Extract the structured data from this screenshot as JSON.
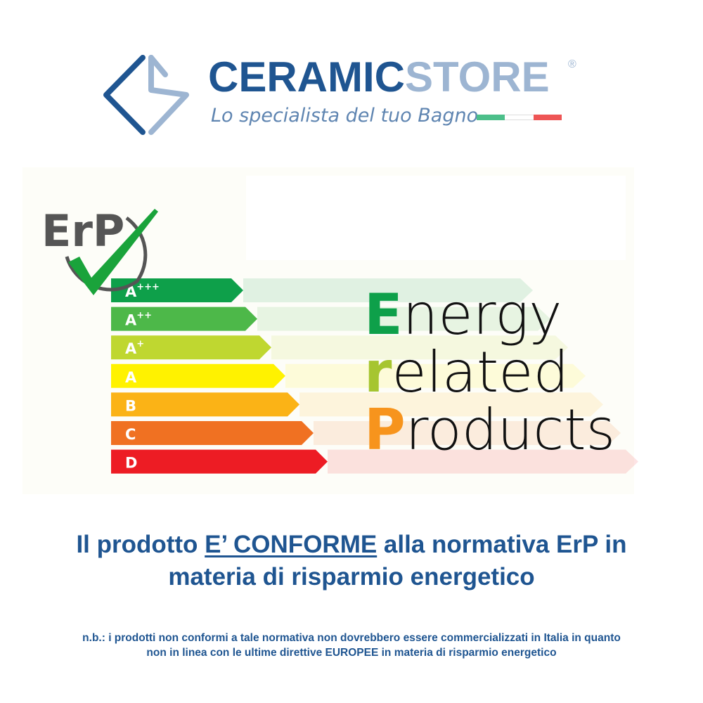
{
  "brand": {
    "name_part1": "CERAMIC",
    "name_part2": "STORE",
    "registered_mark": "®",
    "tagline": "Lo specialista del tuo Bagno",
    "flag_colors": [
      "#4cbf8a",
      "#ffffff",
      "#ee5555"
    ],
    "primary_color": "#1f5591",
    "secondary_color": "#9db5d2"
  },
  "erp_logo": {
    "text": "ErP",
    "icon": "check-icon"
  },
  "energy_scale": [
    {
      "label": "A",
      "sup": "+++",
      "color": "#0ea04a"
    },
    {
      "label": "A",
      "sup": "++",
      "color": "#4db849"
    },
    {
      "label": "A",
      "sup": "+",
      "color": "#bfd730"
    },
    {
      "label": "A",
      "sup": "",
      "color": "#fff200"
    },
    {
      "label": "B",
      "sup": "",
      "color": "#fbb316"
    },
    {
      "label": "C",
      "sup": "",
      "color": "#f07122"
    },
    {
      "label": "D",
      "sup": "",
      "color": "#ed1c24"
    }
  ],
  "erp_words": [
    {
      "initial": "E",
      "rest": "nergy",
      "color": "#0ea04a"
    },
    {
      "initial": "r",
      "rest": "elated",
      "color": "#a6c530"
    },
    {
      "initial": "P",
      "rest": "roducts",
      "color": "#f7941d"
    }
  ],
  "headline": {
    "part1": "Il prodotto ",
    "emphasis": "E’ CONFORME",
    "part2": " alla normativa ErP in",
    "line2": "materia di risparmio energetico"
  },
  "note": {
    "line1": "n.b.: i prodotti non conformi a tale normativa non dovrebbero essere commercializzati in Italia in quanto",
    "line2_a": "non in linea con le ultime direttive ",
    "line2_b": "EUROPEE",
    "line2_c": " in materia di risparmio energetico"
  }
}
